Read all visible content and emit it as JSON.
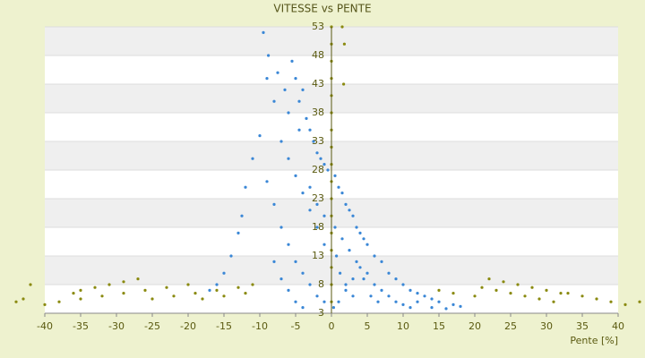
{
  "chart_data": {
    "type": "scatter",
    "title": "VITESSE vs PENTE",
    "x_label": "Pente [%]",
    "xlim": [
      -40,
      40
    ],
    "xticks": [
      -40,
      -35,
      -30,
      -25,
      -20,
      -15,
      -10,
      -5,
      0,
      5,
      10,
      15,
      20,
      25,
      30,
      35,
      40
    ],
    "ylim": [
      3,
      53
    ],
    "yticks": [
      3,
      8,
      13,
      18,
      23,
      28,
      33,
      38,
      43,
      48,
      53
    ],
    "grid": true,
    "series": [
      {
        "color": "#3a87d6",
        "x": [
          -9.5,
          -8.8,
          -9,
          -8,
          -7.5,
          -6.5,
          -6,
          -5.5,
          -5,
          -4.5,
          -4,
          -3.5,
          -3,
          -2.5,
          -2,
          -1.5,
          -1,
          -0.5,
          0.5,
          1,
          1.5,
          2,
          2.5,
          3,
          3.5,
          4,
          4.5,
          5,
          6,
          7,
          8,
          9,
          10,
          11,
          12,
          13,
          14,
          15,
          17,
          18,
          -10,
          -11,
          -12,
          -12.5,
          -13,
          -14,
          -15,
          -16,
          -17,
          -9,
          -8,
          -7,
          -6,
          -5,
          -4,
          -3,
          -2,
          -1,
          0.3,
          1,
          2,
          3,
          4,
          5,
          6,
          7,
          8,
          9,
          10,
          11,
          -3,
          -2,
          -1,
          0.5,
          1.5,
          2.5,
          3.5,
          4.5,
          5.5,
          6.5,
          -6,
          -5,
          -4,
          -3,
          -2,
          -1,
          0.7,
          1.2,
          2,
          3,
          -8,
          -7,
          -6,
          -5,
          -4,
          12,
          14,
          16,
          -7,
          -4.5
        ],
        "values": [
          52,
          48,
          44,
          40,
          45,
          42,
          38,
          47,
          44,
          40,
          42,
          37,
          35,
          33,
          31,
          30,
          29,
          28,
          27,
          25,
          24,
          22,
          21,
          20,
          18,
          17,
          16,
          15,
          13,
          12,
          10,
          9,
          8,
          7,
          6.5,
          6,
          5.5,
          5,
          4.5,
          4.2,
          34,
          30,
          25,
          20,
          17,
          13,
          10,
          8,
          7,
          26,
          22,
          18,
          15,
          12,
          10,
          8,
          6,
          5,
          4,
          5,
          7,
          9,
          11,
          10,
          8,
          7,
          6,
          5,
          4.5,
          4,
          25,
          22,
          20,
          18,
          16,
          14,
          12,
          9,
          6,
          5,
          30,
          27,
          24,
          21,
          18,
          15,
          13,
          10,
          8,
          6,
          12,
          9,
          7,
          5,
          4,
          5,
          4,
          3.8,
          33,
          35
        ]
      },
      {
        "color": "#8a8a10",
        "x": [
          -44,
          -43,
          -42,
          -40,
          -38,
          -36,
          -35,
          -33,
          -31,
          -29,
          -27,
          -35,
          -32,
          -29,
          -26,
          -23,
          -20,
          -25,
          -22,
          -19,
          -16,
          -13,
          -11,
          -18,
          -15,
          -12,
          22,
          24,
          26,
          28,
          30,
          32,
          21,
          23,
          25,
          27,
          29,
          31,
          33,
          35,
          37,
          39,
          41,
          43,
          44,
          20,
          17,
          15,
          0,
          0,
          0,
          0,
          0,
          0,
          0,
          0,
          0,
          0,
          0,
          0,
          0,
          0,
          0,
          0,
          0,
          1.5,
          1.8,
          1.7
        ],
        "values": [
          5,
          5.5,
          8,
          4.5,
          5,
          6.5,
          7,
          7.5,
          8,
          8.5,
          9,
          5.5,
          6,
          6.5,
          7,
          7.5,
          8,
          5.5,
          6,
          6.5,
          7,
          7.5,
          8,
          5.5,
          6,
          6.5,
          9,
          8.5,
          8,
          7.5,
          7,
          6.5,
          7.5,
          7,
          6.5,
          6,
          5.5,
          5,
          6.5,
          6,
          5.5,
          5,
          4.5,
          5,
          4.2,
          6,
          6.5,
          7,
          53,
          50,
          47,
          44,
          41,
          38,
          35,
          32,
          29,
          26,
          23,
          20,
          17,
          14,
          11,
          8,
          5,
          53,
          50,
          43
        ]
      }
    ]
  }
}
